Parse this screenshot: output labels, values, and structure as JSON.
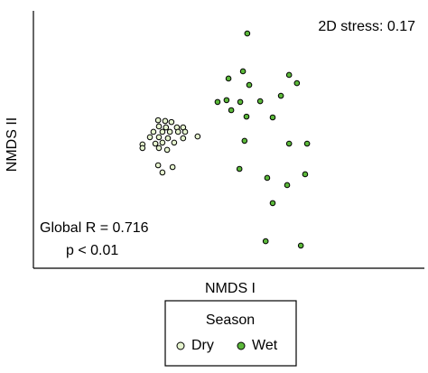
{
  "chart_data": {
    "type": "scatter",
    "xlabel": "NMDS I",
    "ylabel": "NMDS II",
    "annotations": [
      "2D stress: 0.17",
      "Global R = 0.716",
      "p < 0.01"
    ],
    "legend_title": "Season",
    "legend": "bottom",
    "xlim": [
      0,
      100
    ],
    "ylim": [
      0,
      100
    ],
    "series": [
      {
        "name": "Dry",
        "color": "#e6f4cf",
        "x": [
          31.9,
          33.7,
          35.3,
          32.1,
          33.9,
          36.7,
          38.3,
          30.7,
          33.0,
          34.9,
          37.0,
          38.8,
          42.0,
          29.8,
          32.1,
          34.4,
          38.3,
          27.9,
          31.2,
          33.0,
          36.0,
          27.9,
          32.1,
          34.2,
          31.9,
          35.6,
          33.0
        ],
        "values": [
          57.5,
          57.2,
          56.8,
          55.1,
          54.7,
          54.7,
          54.7,
          53.0,
          53.0,
          53.0,
          53.0,
          53.0,
          51.2,
          50.9,
          50.9,
          50.5,
          50.5,
          48.1,
          48.4,
          48.8,
          48.8,
          46.7,
          46.7,
          46.0,
          40.0,
          39.3,
          37.2
        ]
      },
      {
        "name": "Wet",
        "color": "#5bb83a",
        "x": [
          54.7,
          53.6,
          65.4,
          49.9,
          55.2,
          67.4,
          47.1,
          49.4,
          52.9,
          58.0,
          63.3,
          50.6,
          54.5,
          61.2,
          54.0,
          65.4,
          70.0,
          52.7,
          59.8,
          69.5,
          64.9,
          61.2,
          59.4,
          68.4
        ],
        "values": [
          91.2,
          76.5,
          75.1,
          73.7,
          71.2,
          71.9,
          64.6,
          65.3,
          64.6,
          64.9,
          67.0,
          61.4,
          58.9,
          58.6,
          49.5,
          48.4,
          48.4,
          38.6,
          35.1,
          36.5,
          32.3,
          25.3,
          10.5,
          8.8
        ]
      }
    ]
  }
}
